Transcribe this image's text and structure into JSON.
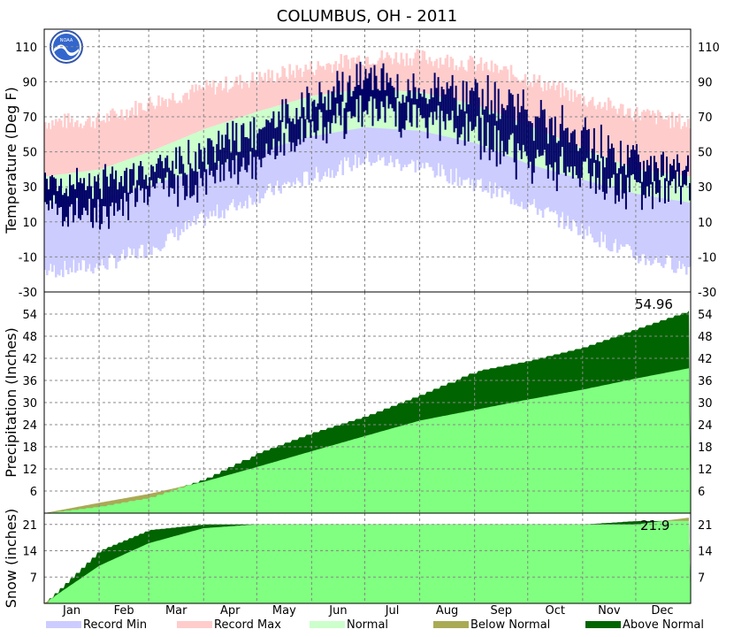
{
  "title": "COLUMBUS, OH - 2011",
  "months": [
    "Jan",
    "Feb",
    "Mar",
    "Apr",
    "May",
    "Jun",
    "Jul",
    "Aug",
    "Sep",
    "Oct",
    "Nov",
    "Dec"
  ],
  "legend": [
    {
      "label": "Record Min",
      "color": "#ccccff"
    },
    {
      "label": "Record Max",
      "color": "#ffcccc"
    },
    {
      "label": "Normal",
      "color": "#ccffcc"
    },
    {
      "label": "Below Normal",
      "color": "#aaaa55"
    },
    {
      "label": "Above Normal",
      "color": "#006400"
    }
  ],
  "colors": {
    "record_min": "#ccccff",
    "record_max": "#ffcccc",
    "normal": "#ccffcc",
    "observed_temp": "#000066",
    "normal_precip": "#80ff80",
    "above_normal": "#006400",
    "below_normal": "#aaaa55",
    "grid": "#888888"
  },
  "chart_data": [
    {
      "type": "area",
      "panel": "temperature",
      "ylabel": "Temperature (Deg F)",
      "ylim": [
        -30,
        120
      ],
      "yticks": [
        -30,
        -10,
        10,
        30,
        50,
        70,
        90,
        110
      ],
      "x": [
        "Jan 1",
        "Feb 1",
        "Mar 1",
        "Apr 1",
        "May 1",
        "Jun 1",
        "Jul 1",
        "Aug 1",
        "Sep 1",
        "Oct 1",
        "Nov 1",
        "Dec 1",
        "Dec 31"
      ],
      "series": [
        {
          "name": "Record Max",
          "values": [
            67,
            68,
            78,
            86,
            92,
            98,
            104,
            104,
            100,
            92,
            80,
            72,
            66
          ]
        },
        {
          "name": "Normal High",
          "values": [
            36,
            40,
            50,
            63,
            73,
            82,
            86,
            84,
            77,
            65,
            52,
            40,
            36
          ]
        },
        {
          "name": "Normal Low",
          "values": [
            21,
            23,
            31,
            40,
            50,
            59,
            64,
            62,
            55,
            43,
            34,
            26,
            21
          ]
        },
        {
          "name": "Record Min",
          "values": [
            -18,
            -15,
            -5,
            12,
            25,
            36,
            46,
            42,
            32,
            20,
            5,
            -10,
            -16
          ]
        }
      ],
      "observed_highs": [
        30,
        35,
        38,
        52,
        65,
        80,
        93,
        85,
        85,
        72,
        60,
        45,
        40
      ],
      "observed_lows": [
        15,
        10,
        25,
        32,
        45,
        62,
        70,
        68,
        58,
        42,
        35,
        25,
        30
      ],
      "grid": true
    },
    {
      "type": "area",
      "panel": "precipitation",
      "ylabel": "Precipitation (Inches)",
      "ylim": [
        0,
        60
      ],
      "yticks": [
        6,
        12,
        18,
        24,
        30,
        36,
        42,
        48,
        54
      ],
      "x": [
        "Jan 1",
        "Feb 1",
        "Mar 1",
        "Apr 1",
        "May 1",
        "Jun 1",
        "Jul 1",
        "Aug 1",
        "Sep 1",
        "Oct 1",
        "Nov 1",
        "Dec 1",
        "Dec 31"
      ],
      "series": [
        {
          "name": "Normal",
          "values": [
            0,
            2.8,
            5.2,
            8.5,
            12.5,
            16.8,
            20.9,
            25.1,
            28.0,
            30.8,
            33.5,
            36.5,
            39.3
          ]
        },
        {
          "name": "Observed",
          "values": [
            0,
            1.8,
            4.2,
            9.2,
            16.3,
            21.8,
            26.3,
            32.1,
            38.5,
            41.3,
            45.0,
            50.0,
            54.96
          ]
        }
      ],
      "total_label": "54.96",
      "grid": true
    },
    {
      "type": "area",
      "panel": "snow",
      "ylabel": "Snow (inches)",
      "ylim": [
        0,
        24
      ],
      "yticks": [
        7,
        14,
        21
      ],
      "x": [
        "Jan 1",
        "Feb 1",
        "Mar 1",
        "Apr 1",
        "May 1",
        "Jun 1",
        "Jul 1",
        "Aug 1",
        "Sep 1",
        "Oct 1",
        "Nov 1",
        "Dec 1",
        "Dec 31"
      ],
      "series": [
        {
          "name": "Normal",
          "values": [
            0,
            10,
            16,
            20,
            21,
            21,
            21,
            21,
            21,
            21,
            21,
            21,
            22.8
          ]
        },
        {
          "name": "Observed",
          "values": [
            0,
            14,
            19.5,
            21,
            21,
            21,
            21,
            21,
            21,
            21,
            21,
            21.9,
            21.9
          ]
        }
      ],
      "total_label": "21.9",
      "grid": true
    }
  ]
}
